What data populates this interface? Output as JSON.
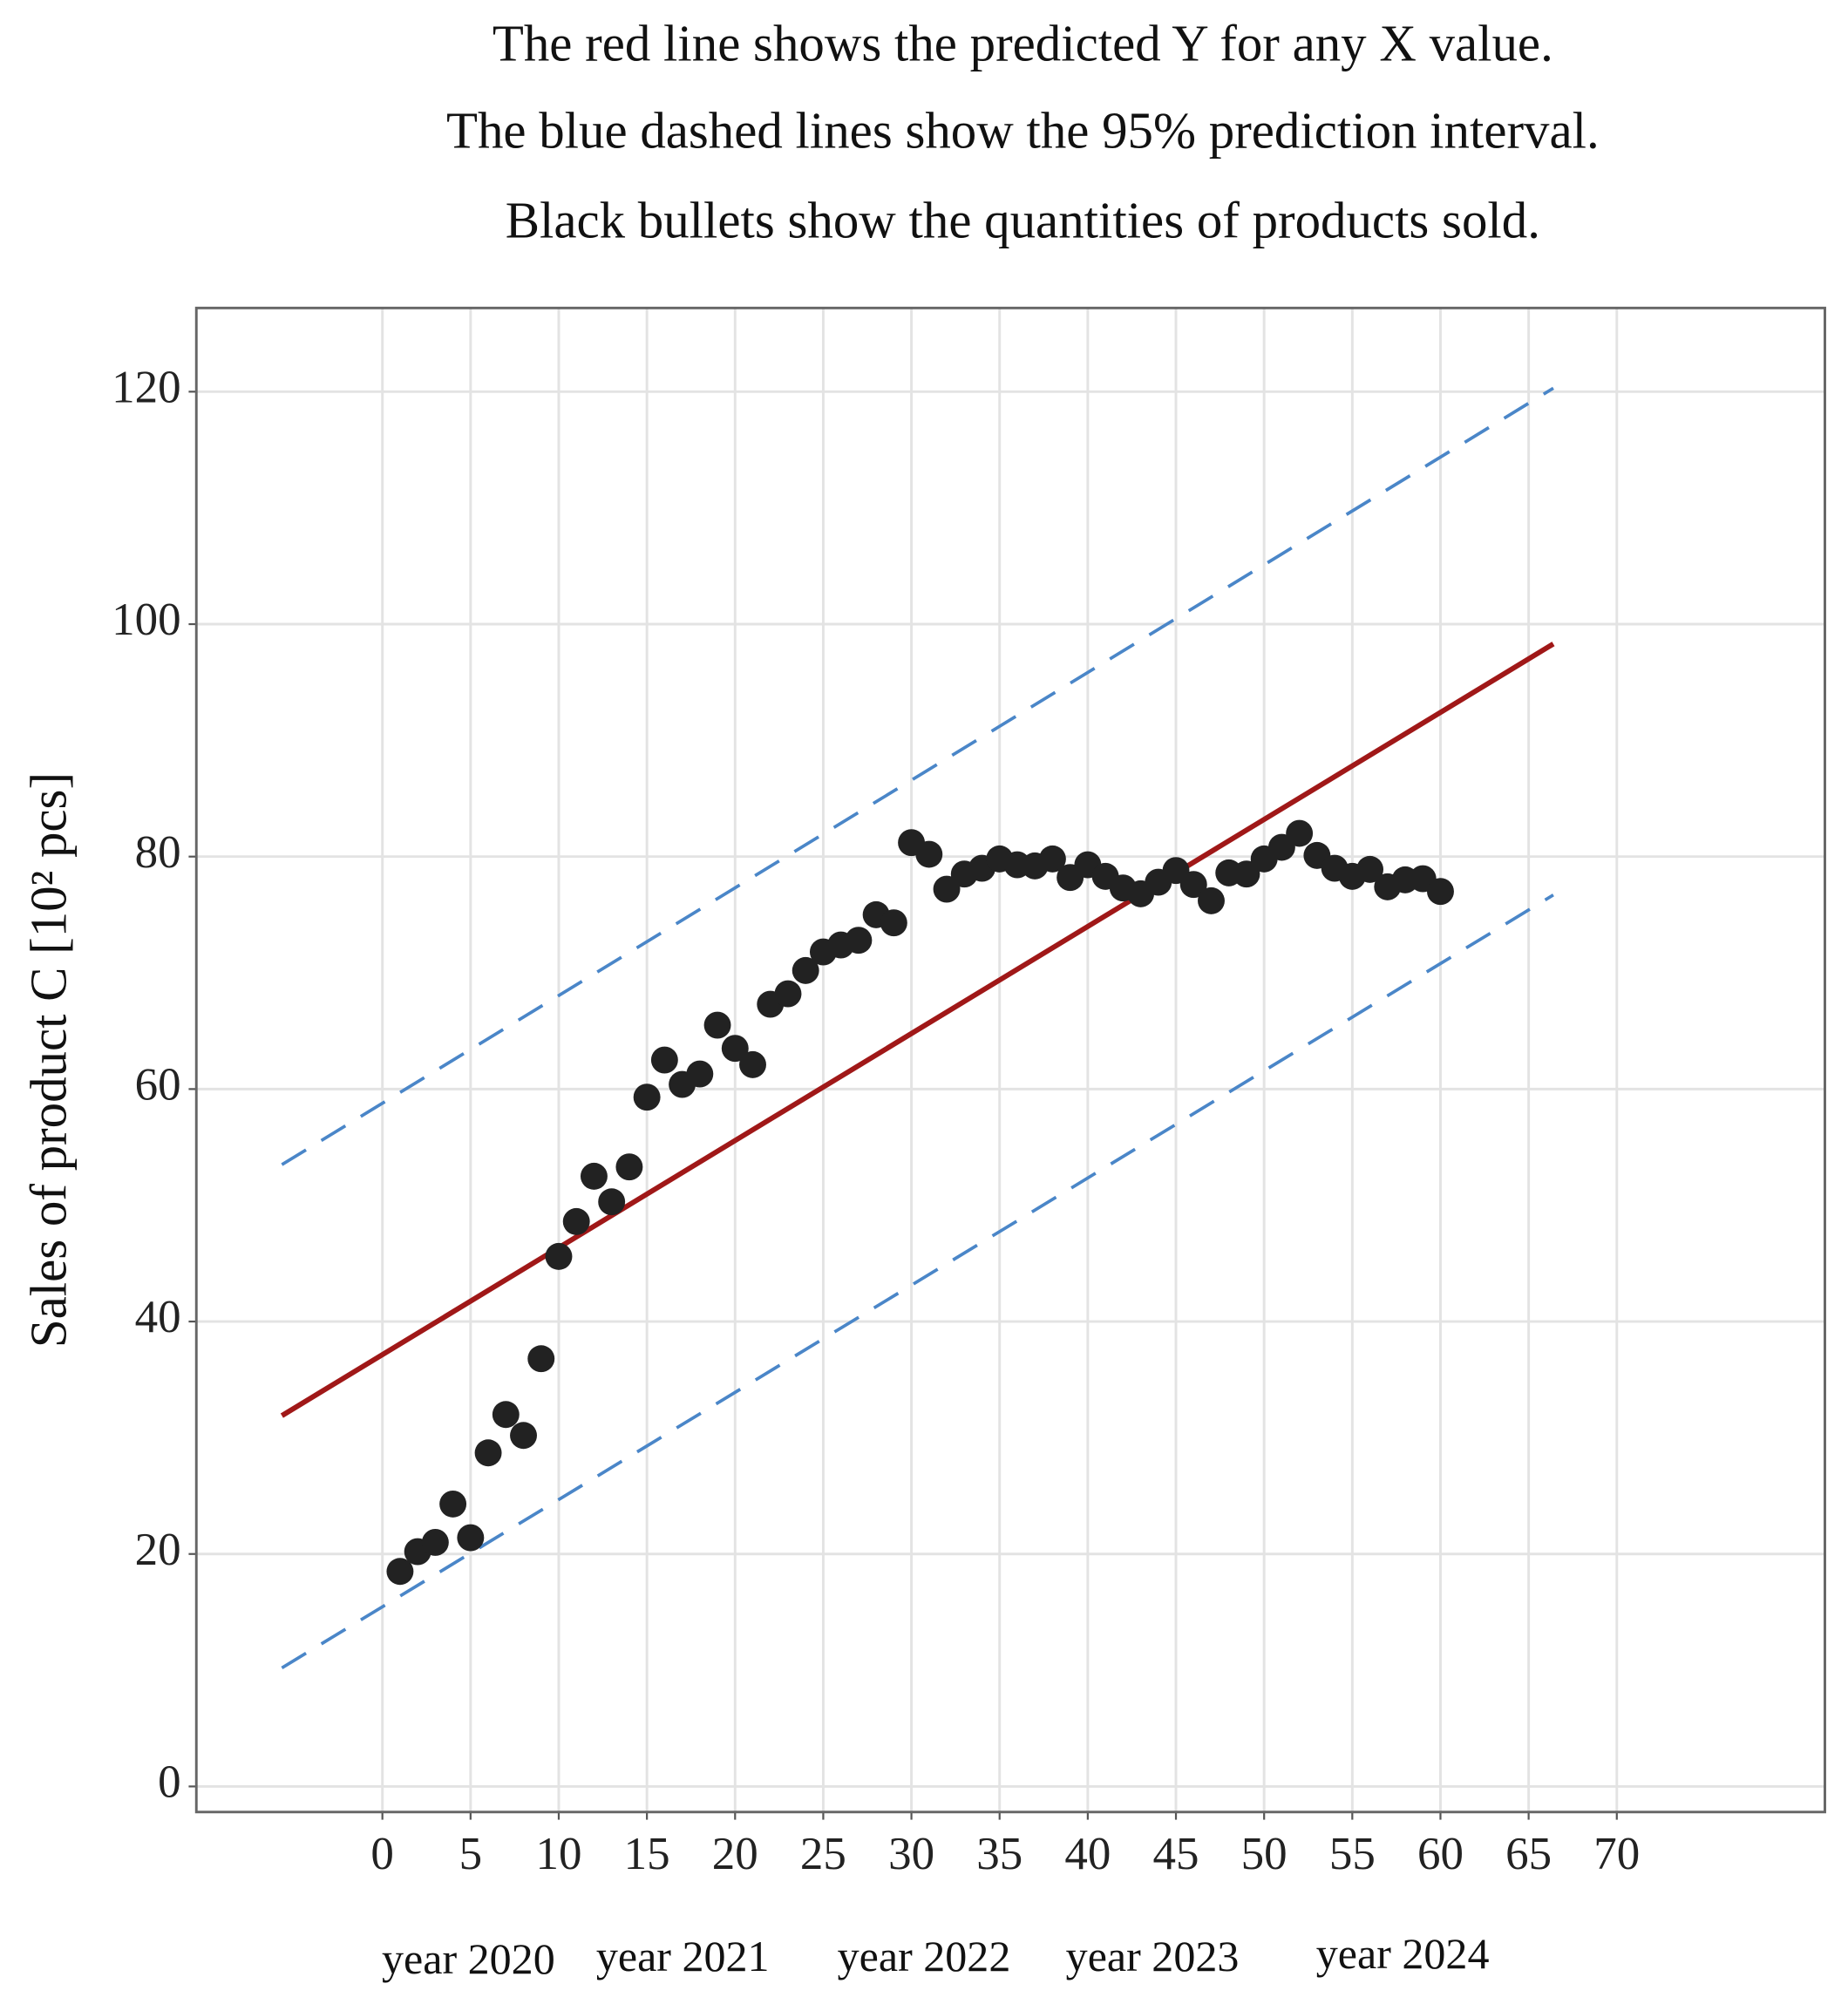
{
  "chart_data": {
    "type": "scatter",
    "title": [
      "The red line shows the predicted Y for any  X value.",
      "The blue dashed lines show the 95% prediction interval.",
      "Black bullets show the quantities of products sold."
    ],
    "y_label": "Sales of product C [10² pcs]",
    "x_annotations": [
      "year 2020",
      "year 2021",
      "year 2022",
      "year 2023",
      "year 2024"
    ],
    "xlim": [
      -10.55,
      81.8
    ],
    "ylim": [
      -2.2,
      127.2
    ],
    "xticks": [
      0,
      5,
      10,
      15,
      20,
      25,
      30,
      35,
      40,
      45,
      50,
      55,
      60,
      65,
      70
    ],
    "yticks": [
      0,
      20,
      40,
      60,
      80,
      100,
      120
    ],
    "grid": true,
    "points": {
      "color": "#222222",
      "x": [
        1,
        2,
        3,
        4,
        5,
        6,
        7,
        8,
        9,
        10,
        11,
        12,
        13,
        14,
        15,
        16,
        17,
        18,
        19,
        20,
        21,
        22,
        23,
        24,
        25,
        26,
        27,
        28,
        29,
        30,
        31,
        32,
        33,
        34,
        35,
        36,
        37,
        38,
        39,
        40,
        41,
        42,
        43,
        44,
        45,
        46,
        47,
        48,
        49,
        50,
        51,
        52,
        53,
        54,
        55,
        56,
        57,
        58,
        59,
        60
      ],
      "values": [
        18.5,
        20.2,
        21.0,
        24.3,
        21.4,
        28.7,
        32.0,
        30.2,
        36.8,
        45.6,
        48.6,
        52.5,
        50.3,
        53.3,
        59.3,
        62.5,
        60.4,
        61.3,
        65.5,
        63.5,
        62.1,
        67.3,
        68.2,
        70.2,
        71.8,
        72.4,
        72.8,
        75.0,
        74.3,
        81.2,
        80.2,
        77.2,
        78.5,
        79.0,
        79.8,
        79.3,
        79.2,
        79.8,
        78.2,
        79.3,
        78.3,
        77.3,
        76.8,
        77.8,
        78.8,
        77.6,
        76.2,
        78.6,
        78.5,
        79.8,
        80.8,
        82.0,
        80.1,
        79.0,
        78.3,
        78.9,
        77.4,
        78.0,
        78.1,
        77.0
      ]
    },
    "lines": [
      {
        "x": [
          -5.7,
          66.4
        ],
        "values": [
          31.9,
          98.3
        ],
        "color": "#a01818",
        "dashed": false
      },
      {
        "x": [
          -5.7,
          66.4
        ],
        "values": [
          53.5,
          120.3
        ],
        "color": "#4a86c8",
        "dashed": true
      },
      {
        "x": [
          -5.7,
          66.4
        ],
        "values": [
          10.2,
          76.7
        ],
        "color": "#4a86c8",
        "dashed": true
      }
    ]
  }
}
